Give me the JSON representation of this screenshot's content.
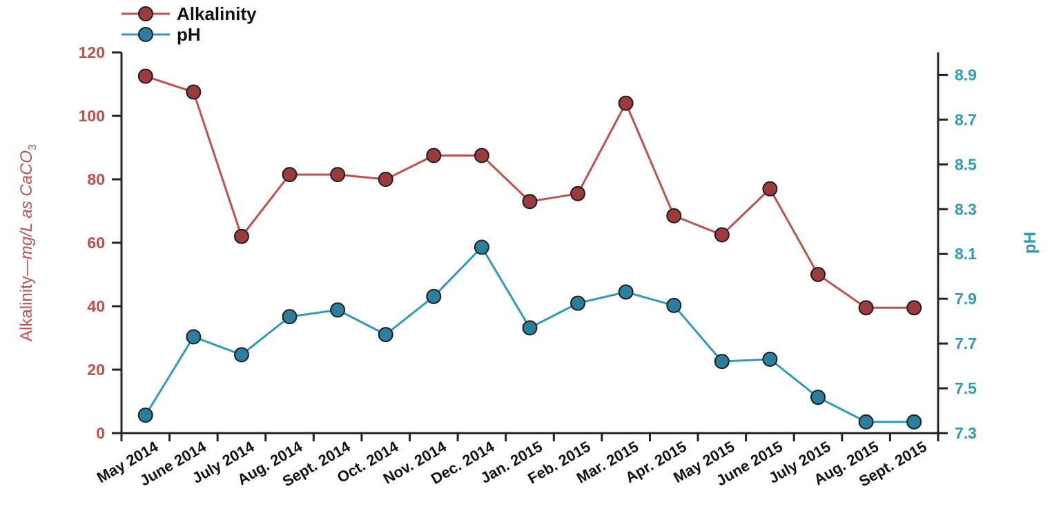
{
  "chart_data": {
    "type": "line",
    "categories": [
      "May 2014",
      "June 2014",
      "July 2014",
      "Aug. 2014",
      "Sept. 2014",
      "Oct. 2014",
      "Nov. 2014",
      "Dec. 2014",
      "Jan. 2015",
      "Feb. 2015",
      "Mar. 2015",
      "Apr. 2015",
      "May 2015",
      "June 2015",
      "July 2015",
      "Aug. 2015",
      "Sept. 2015"
    ],
    "y_left": {
      "label_main": "Alkalinity—",
      "label_unit": "mg/L as CaCO",
      "label_sub": "3",
      "ticks": [
        "0",
        "20",
        "40",
        "60",
        "80",
        "100",
        "120"
      ],
      "range": [
        0,
        120
      ]
    },
    "y_right": {
      "label": "pH",
      "ticks": [
        "7.3",
        "7.5",
        "7.7",
        "7.9",
        "8.1",
        "8.3",
        "8.5",
        "8.7",
        "8.9"
      ],
      "range": [
        7.3,
        9.0
      ]
    },
    "series": [
      {
        "name": "Alkalinity",
        "axis": "left",
        "color": "#c0504d",
        "marker_fill": "#9b3b3e",
        "values": [
          112.5,
          107.5,
          62,
          81.5,
          81.5,
          80,
          87.5,
          87.5,
          73,
          75.5,
          104,
          68.5,
          62.5,
          77,
          50,
          39.5,
          39.5
        ]
      },
      {
        "name": "pH",
        "axis": "right",
        "color": "#2e9bb8",
        "marker_fill": "#2b7f9e",
        "values": [
          7.38,
          7.73,
          7.65,
          7.82,
          7.85,
          7.74,
          7.91,
          8.13,
          7.77,
          7.88,
          7.93,
          7.87,
          7.62,
          7.63,
          7.46,
          7.35,
          7.35
        ]
      }
    ],
    "legend": {
      "placement": "top-left"
    },
    "grid": false
  }
}
